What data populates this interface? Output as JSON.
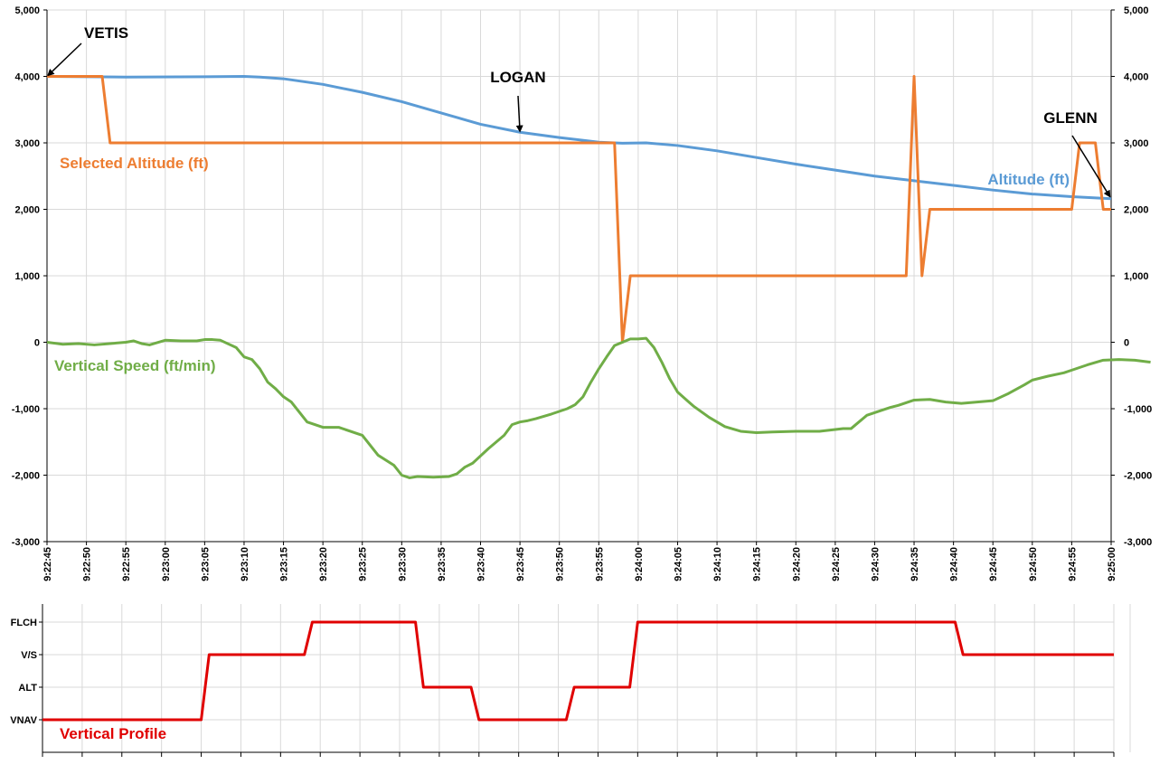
{
  "colors": {
    "altitude": "#5b9bd5",
    "selected_altitude": "#ed7d31",
    "vertical_speed": "#70ad47",
    "vertical_profile": "#e00000",
    "annotation": "#000000",
    "grid": "#d9d9d9"
  },
  "chart_data": [
    {
      "type": "line",
      "x_ticks": [
        "9:22:45",
        "9:22:50",
        "9:22:55",
        "9:23:00",
        "9:23:05",
        "9:23:10",
        "9:23:15",
        "9:23:20",
        "9:23:25",
        "9:23:30",
        "9:23:35",
        "9:23:40",
        "9:23:45",
        "9:23:50",
        "9:23:55",
        "9:24:00",
        "9:24:05",
        "9:24:10",
        "9:24:15",
        "9:24:20",
        "9:24:25",
        "9:24:30",
        "9:24:35",
        "9:24:40",
        "9:24:45",
        "9:24:50",
        "9:24:55",
        "9:25:00"
      ],
      "ylim": [
        -3000,
        5000
      ],
      "y_ticks": [
        "5,000",
        "4,000",
        "3,000",
        "2,000",
        "1,000",
        "0",
        "-1,000",
        "-2,000",
        "-3,000"
      ],
      "y_tick_values": [
        5000,
        4000,
        3000,
        2000,
        1000,
        0,
        -1000,
        -2000,
        -3000
      ],
      "grid": true,
      "series": [
        {
          "name": "Altitude (ft)",
          "color": "#5b9bd5",
          "points": [
            [
              0,
              4000
            ],
            [
              10,
              3990
            ],
            [
              20,
              3995
            ],
            [
              25,
              4000
            ],
            [
              27,
              3990
            ],
            [
              30,
              3965
            ],
            [
              35,
              3880
            ],
            [
              40,
              3760
            ],
            [
              45,
              3620
            ],
            [
              50,
              3450
            ],
            [
              55,
              3280
            ],
            [
              60,
              3160
            ],
            [
              65,
              3080
            ],
            [
              70,
              3010
            ],
            [
              73,
              2995
            ],
            [
              76,
              3000
            ],
            [
              80,
              2960
            ],
            [
              85,
              2880
            ],
            [
              90,
              2780
            ],
            [
              95,
              2680
            ],
            [
              100,
              2590
            ],
            [
              105,
              2500
            ],
            [
              110,
              2430
            ],
            [
              115,
              2360
            ],
            [
              120,
              2290
            ],
            [
              125,
              2230
            ],
            [
              130,
              2190
            ],
            [
              135,
              2160
            ]
          ]
        },
        {
          "name": "Selected Altitude (ft)",
          "color": "#ed7d31",
          "points": [
            [
              0,
              4000
            ],
            [
              7,
              4000
            ],
            [
              8,
              3000
            ],
            [
              72,
              3000
            ],
            [
              73,
              0
            ],
            [
              74,
              1000
            ],
            [
              109,
              1000
            ],
            [
              110,
              4000
            ],
            [
              111,
              1000
            ],
            [
              112,
              2000
            ],
            [
              130,
              2000
            ],
            [
              131,
              3000
            ],
            [
              133,
              3000
            ],
            [
              134,
              2000
            ],
            [
              135,
              2000
            ]
          ]
        },
        {
          "name": "Vertical Speed (ft/min)",
          "color": "#70ad47",
          "points": [
            [
              0,
              0
            ],
            [
              2,
              -30
            ],
            [
              4,
              -20
            ],
            [
              6,
              -40
            ],
            [
              8,
              -20
            ],
            [
              10,
              0
            ],
            [
              11,
              20
            ],
            [
              12,
              -20
            ],
            [
              13,
              -40
            ],
            [
              15,
              30
            ],
            [
              17,
              20
            ],
            [
              19,
              20
            ],
            [
              20,
              40
            ],
            [
              21,
              40
            ],
            [
              22,
              30
            ],
            [
              24,
              -80
            ],
            [
              25,
              -220
            ],
            [
              26,
              -260
            ],
            [
              27,
              -400
            ],
            [
              28,
              -600
            ],
            [
              29,
              -700
            ],
            [
              30,
              -820
            ],
            [
              31,
              -900
            ],
            [
              32,
              -1050
            ],
            [
              33,
              -1200
            ],
            [
              35,
              -1280
            ],
            [
              37,
              -1280
            ],
            [
              40,
              -1400
            ],
            [
              42,
              -1700
            ],
            [
              44,
              -1850
            ],
            [
              45,
              -2000
            ],
            [
              46,
              -2040
            ],
            [
              47,
              -2020
            ],
            [
              49,
              -2030
            ],
            [
              51,
              -2020
            ],
            [
              52,
              -1980
            ],
            [
              53,
              -1880
            ],
            [
              54,
              -1820
            ],
            [
              56,
              -1600
            ],
            [
              57,
              -1500
            ],
            [
              58,
              -1400
            ],
            [
              59,
              -1240
            ],
            [
              60,
              -1200
            ],
            [
              61,
              -1180
            ],
            [
              62,
              -1150
            ],
            [
              64,
              -1080
            ],
            [
              66,
              -1000
            ],
            [
              67,
              -940
            ],
            [
              68,
              -820
            ],
            [
              69,
              -600
            ],
            [
              70,
              -400
            ],
            [
              71,
              -220
            ],
            [
              72,
              -50
            ],
            [
              73,
              0
            ],
            [
              74,
              50
            ],
            [
              75,
              50
            ],
            [
              76,
              60
            ],
            [
              77,
              -80
            ],
            [
              78,
              -300
            ],
            [
              79,
              -550
            ],
            [
              80,
              -750
            ],
            [
              82,
              -960
            ],
            [
              84,
              -1130
            ],
            [
              86,
              -1270
            ],
            [
              88,
              -1340
            ],
            [
              90,
              -1360
            ],
            [
              92,
              -1350
            ],
            [
              95,
              -1340
            ],
            [
              98,
              -1340
            ],
            [
              101,
              -1300
            ],
            [
              102,
              -1300
            ],
            [
              103,
              -1200
            ],
            [
              104,
              -1100
            ],
            [
              106,
              -1020
            ],
            [
              107,
              -980
            ],
            [
              108,
              -950
            ],
            [
              110,
              -870
            ],
            [
              112,
              -860
            ],
            [
              114,
              -900
            ],
            [
              116,
              -920
            ],
            [
              118,
              -900
            ],
            [
              120,
              -880
            ],
            [
              122,
              -770
            ],
            [
              124,
              -640
            ],
            [
              125,
              -570
            ],
            [
              127,
              -510
            ],
            [
              129,
              -460
            ],
            [
              130,
              -420
            ],
            [
              132,
              -340
            ],
            [
              134,
              -270
            ],
            [
              136,
              -260
            ],
            [
              138,
              -270
            ],
            [
              140,
              -300
            ]
          ]
        }
      ],
      "labels": {
        "altitude": "Altitude (ft)",
        "selected_altitude": "Selected Altitude (ft)",
        "vertical_speed": "Vertical Speed (ft/min)"
      },
      "annotations": [
        {
          "text": "VETIS",
          "target": [
            0,
            4000
          ]
        },
        {
          "text": "LOGAN",
          "target": [
            60,
            3160
          ]
        },
        {
          "text": "GLENN",
          "target": [
            135,
            2160
          ]
        }
      ]
    },
    {
      "type": "line",
      "categories": [
        "VNAV",
        "ALT",
        "V/S",
        "FLCH"
      ],
      "y_ticks": [
        "FLCH",
        "V/S",
        "ALT",
        "VNAV"
      ],
      "grid": true,
      "series": [
        {
          "name": "Vertical Profile",
          "color": "#e00000",
          "points": [
            [
              0,
              0
            ],
            [
              20,
              0
            ],
            [
              21,
              2
            ],
            [
              33,
              2
            ],
            [
              34,
              3
            ],
            [
              47,
              3
            ],
            [
              48,
              1
            ],
            [
              54,
              1
            ],
            [
              55,
              0
            ],
            [
              66,
              0
            ],
            [
              67,
              1
            ],
            [
              74,
              1
            ],
            [
              75,
              3
            ],
            [
              115,
              3
            ],
            [
              116,
              2
            ],
            [
              135,
              2
            ]
          ]
        }
      ],
      "label": "Vertical Profile"
    }
  ]
}
